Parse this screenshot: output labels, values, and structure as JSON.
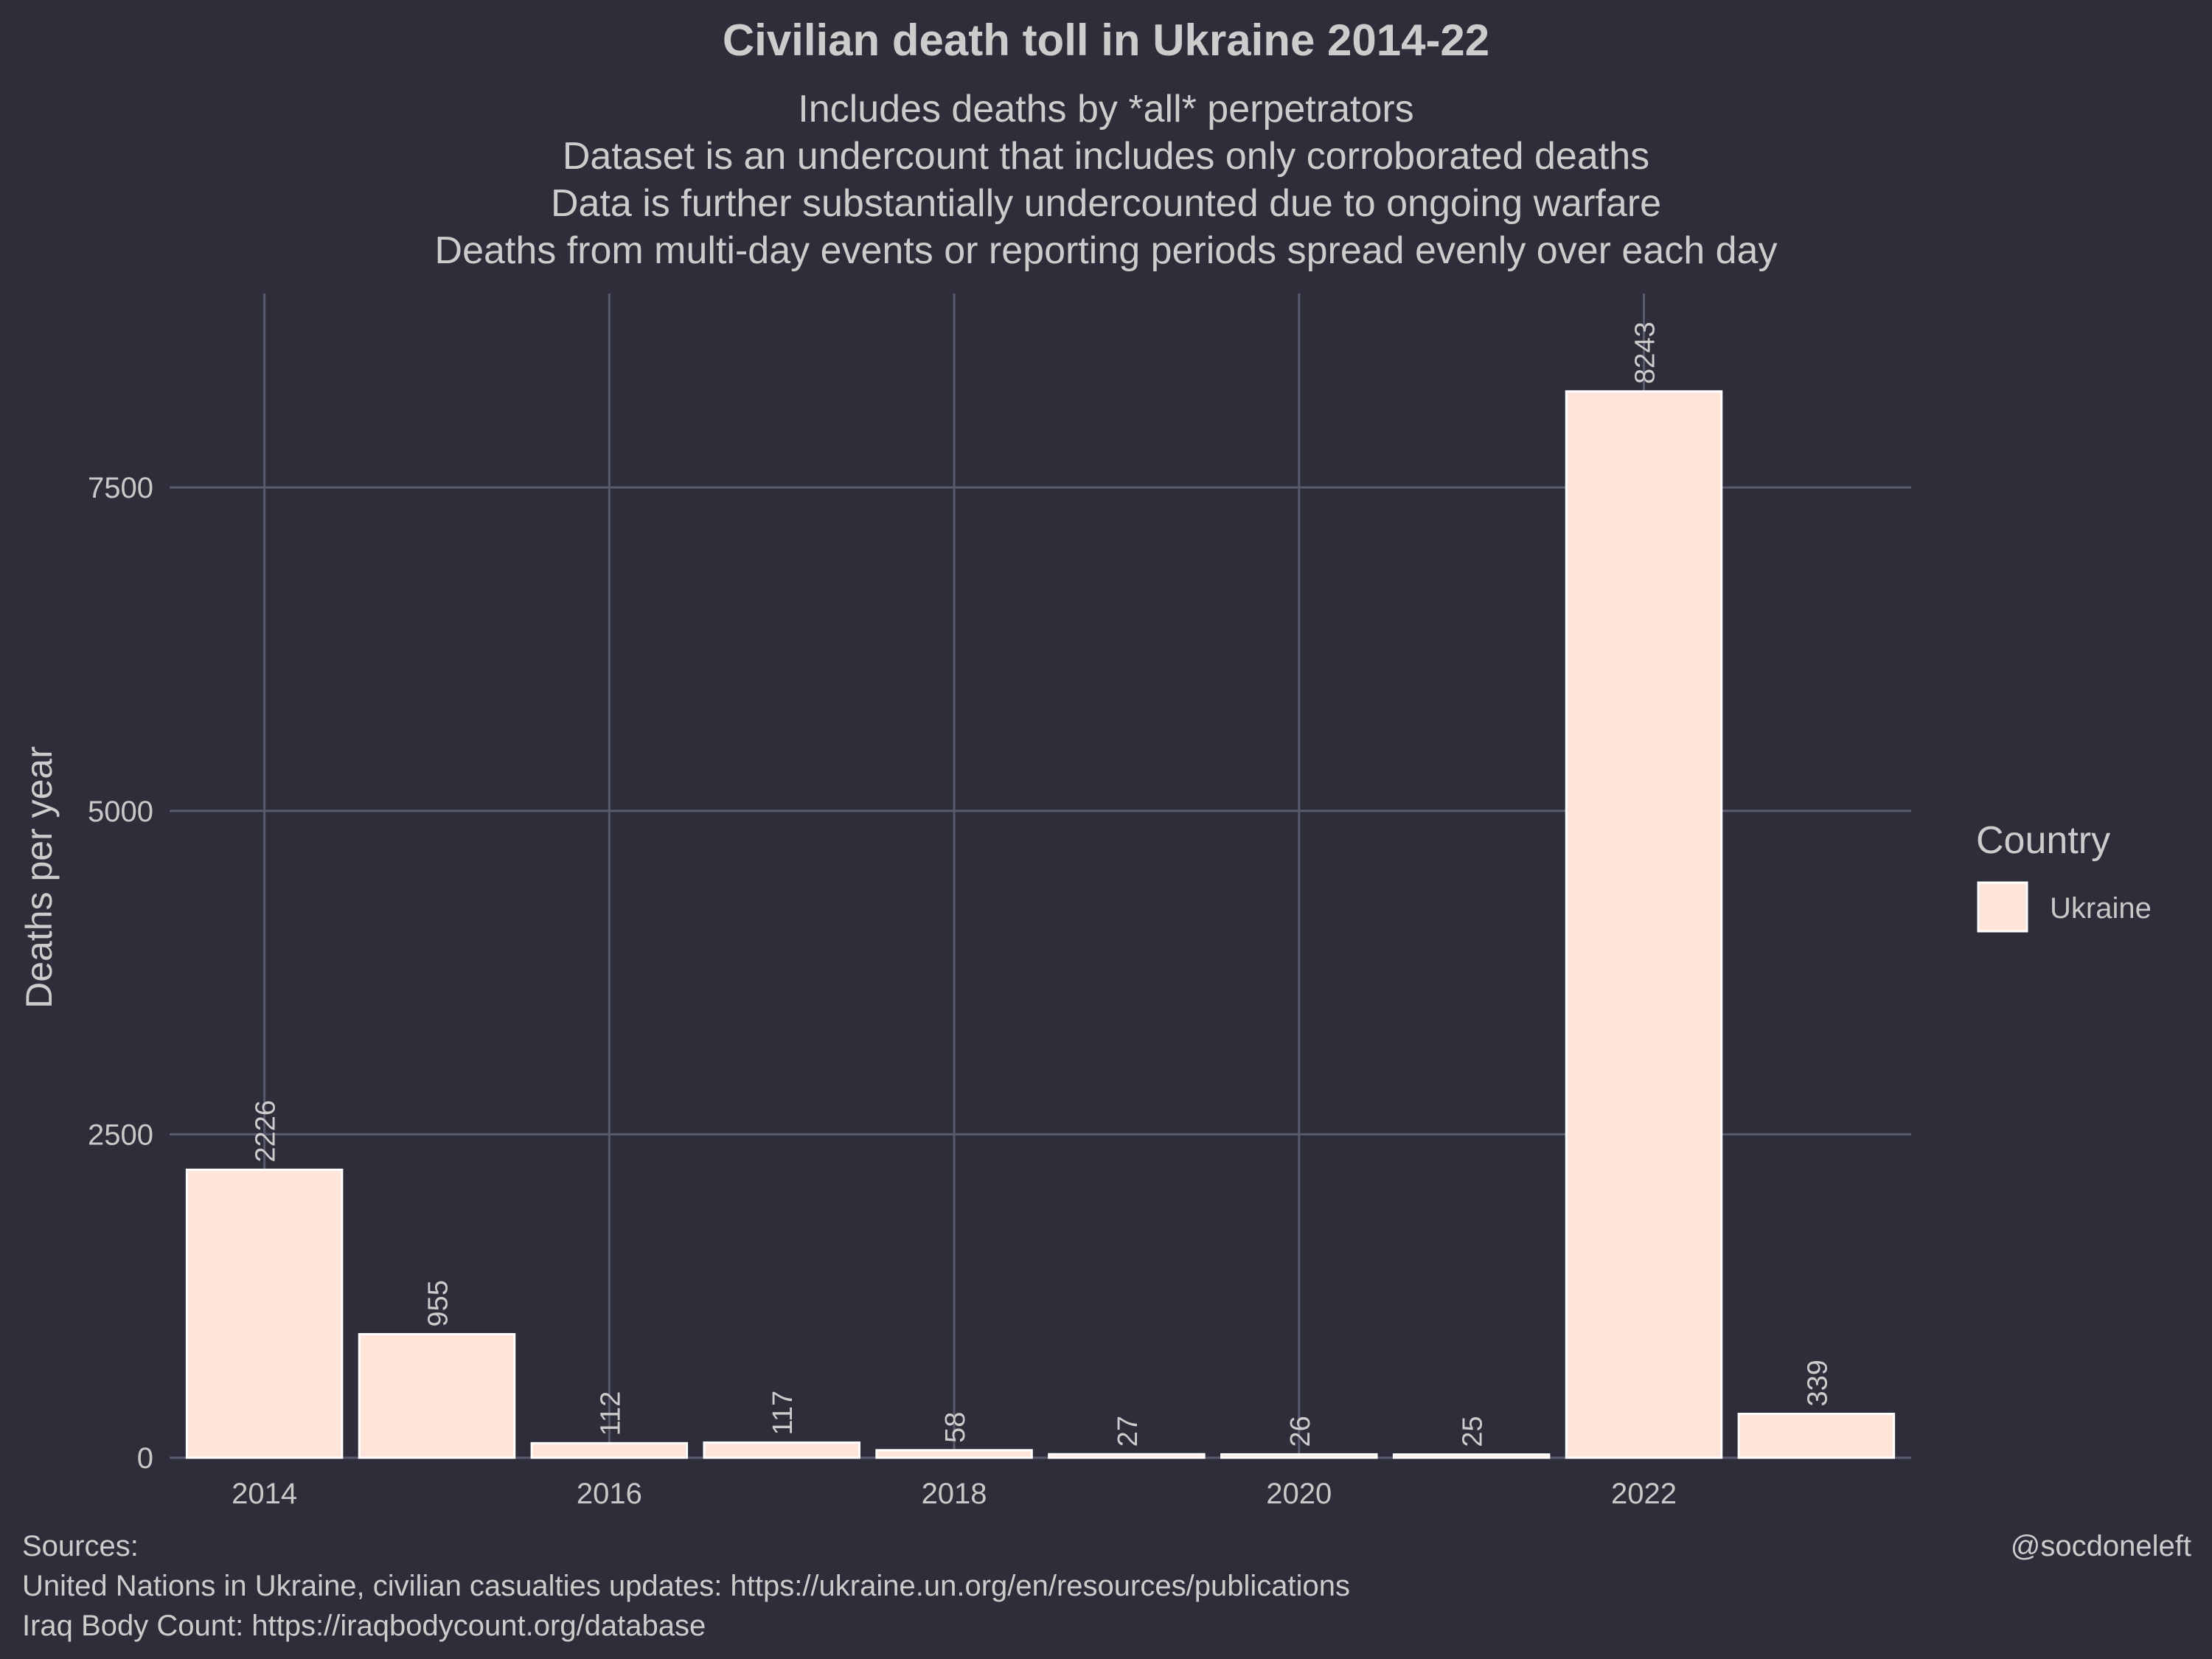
{
  "chart_data": {
    "type": "bar",
    "title": "Civilian death toll in Ukraine 2014-22",
    "subtitle_lines": [
      "Includes deaths by *all* perpetrators",
      "Dataset is an undercount that includes only corroborated deaths",
      "Data is further substantially undercounted due to ongoing warfare",
      "Deaths from multi-day events or reporting periods spread evenly over each day"
    ],
    "ylabel": "Deaths per year",
    "xlabel": "",
    "x_ticks": [
      "2014",
      "2016",
      "2018",
      "2020",
      "2022"
    ],
    "y_ticks": [
      "0",
      "2500",
      "5000",
      "7500"
    ],
    "ylim": [
      0,
      9000
    ],
    "xlim": [
      2013.45,
      2023.55
    ],
    "grid": true,
    "series": [
      {
        "name": "Ukraine",
        "color": "#ffe4d9",
        "x": [
          2014,
          2015,
          2016,
          2017,
          2018,
          2019,
          2020,
          2021,
          2022,
          2023
        ],
        "values": [
          2226,
          955,
          112,
          117,
          58,
          27,
          26,
          25,
          8243,
          339
        ],
        "labels": [
          "2226",
          "955",
          "112",
          "117",
          "58",
          "27",
          "26",
          "25",
          "8243",
          "339"
        ]
      }
    ],
    "legend": {
      "title": "Country",
      "entries": [
        "Ukraine"
      ],
      "placement": "right"
    }
  },
  "caption": {
    "sources_lines": [
      "Sources:",
      "United Nations in Ukraine, civilian casualties updates: https://ukraine.un.org/en/resources/publications",
      "Iraq Body Count: https://iraqbodycount.org/database"
    ],
    "handle": "@socdoneleft"
  },
  "colors": {
    "background": "#2e2e3a",
    "grid": "#5a5a6e",
    "bar_fill": "#ffe4d9",
    "text": "#cccccc"
  }
}
